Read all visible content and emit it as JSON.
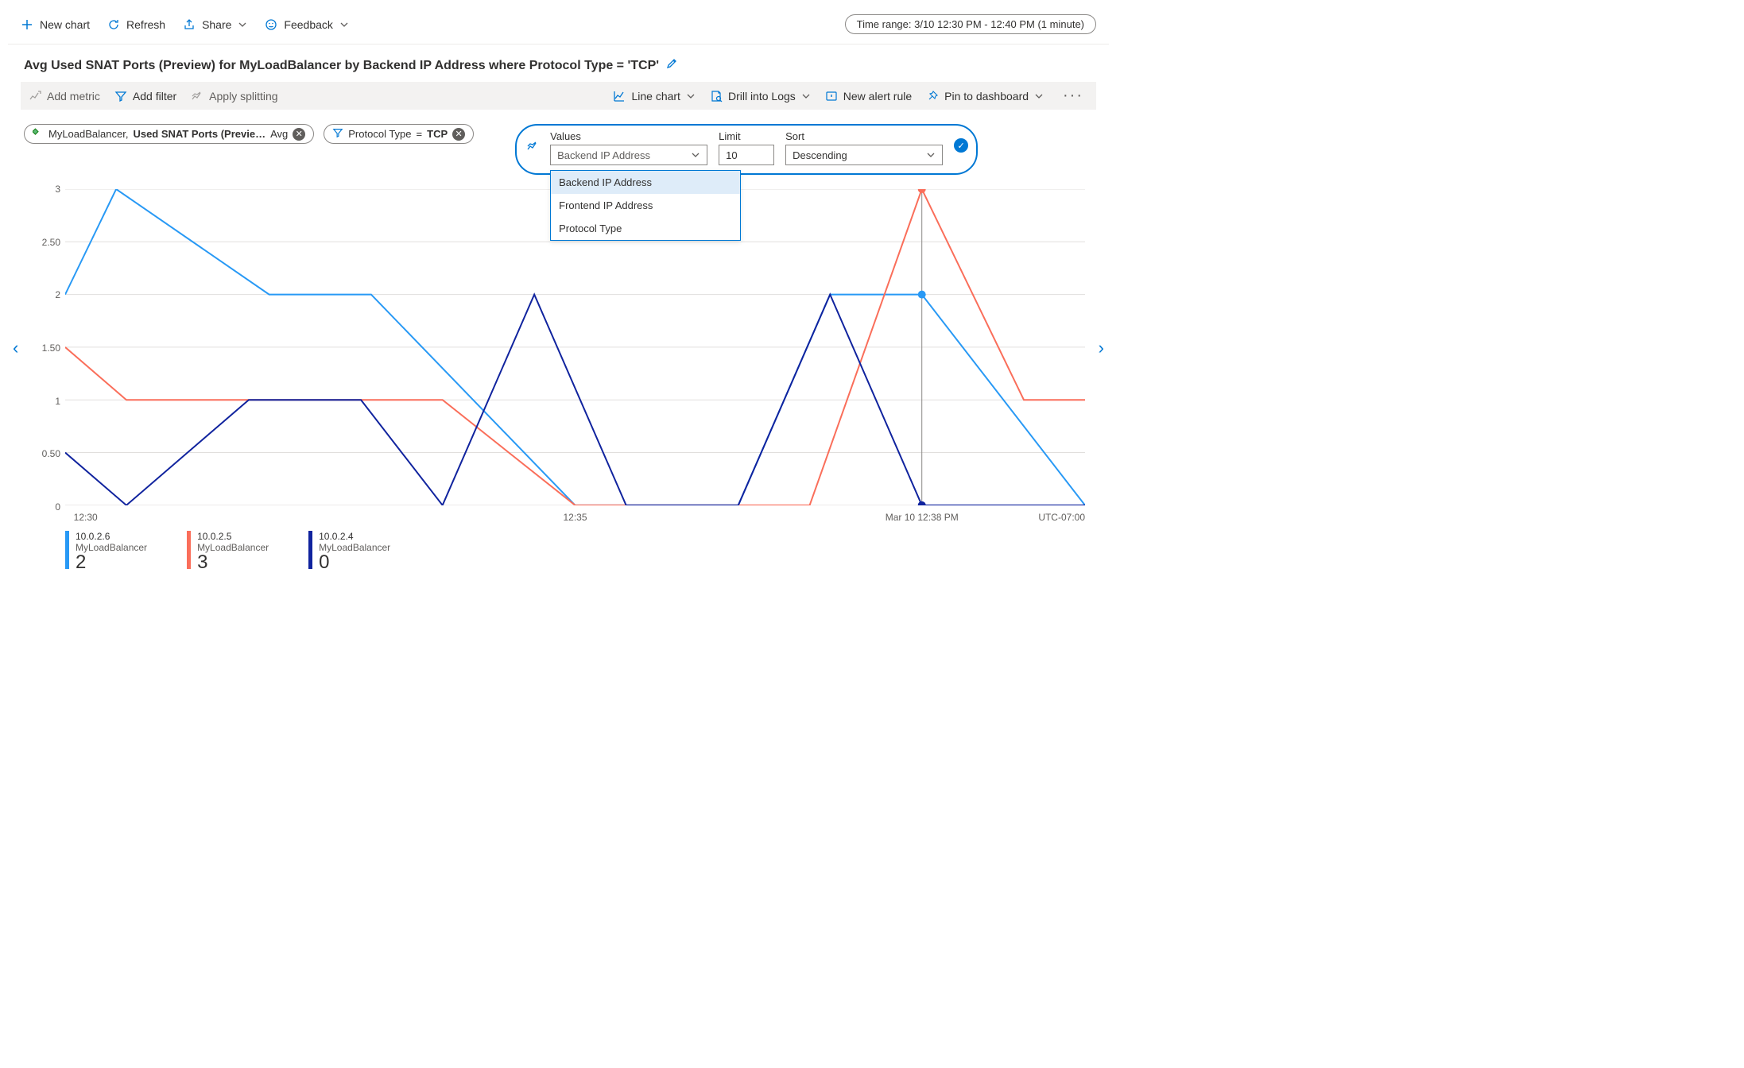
{
  "toolbar": {
    "new_chart": "New chart",
    "refresh": "Refresh",
    "share": "Share",
    "feedback": "Feedback",
    "time_range": "Time range: 3/10 12:30 PM - 12:40 PM (1 minute)"
  },
  "title": "Avg Used SNAT Ports (Preview) for MyLoadBalancer by Backend IP Address where Protocol Type = 'TCP'",
  "sec_toolbar": {
    "add_metric": "Add metric",
    "add_filter": "Add filter",
    "apply_splitting": "Apply splitting",
    "chart_type": "Line chart",
    "drill_logs": "Drill into Logs",
    "new_alert": "New alert rule",
    "pin": "Pin to dashboard"
  },
  "metric_pill": {
    "resource": "MyLoadBalancer,",
    "metric": "Used SNAT Ports (Previe…",
    "agg": "Avg"
  },
  "filter_pill": {
    "dimension": "Protocol Type",
    "op": "=",
    "value": "TCP"
  },
  "split": {
    "values_label": "Values",
    "values_selected": "Backend IP Address",
    "limit_label": "Limit",
    "limit_value": "10",
    "sort_label": "Sort",
    "sort_value": "Descending",
    "options": [
      "Backend IP Address",
      "Frontend IP Address",
      "Protocol Type"
    ],
    "selected_index": 0
  },
  "chart": {
    "ylim": [
      0,
      3
    ],
    "yticks": [
      0,
      0.5,
      1,
      1.5,
      2,
      2.5,
      3
    ],
    "ytick_labels": [
      "0",
      "0.50",
      "1",
      "1.50",
      "2",
      "2.50",
      "3"
    ],
    "x_domain": [
      0,
      10
    ],
    "x_ticks": [
      {
        "pos": 0.2,
        "label": "12:30"
      },
      {
        "pos": 5.0,
        "label": "12:35"
      }
    ],
    "hover": {
      "x": 8.4,
      "label": "Mar 10 12:38 PM"
    },
    "tz_label": "UTC-07:00",
    "colors": {
      "s1": "#2899f5",
      "s2": "#fa6e5a",
      "s3": "#10239e",
      "grid": "#e1dfdd",
      "hover": "#8a8886"
    },
    "series": [
      {
        "key": "s1",
        "points": [
          [
            0,
            2
          ],
          [
            0.5,
            3
          ],
          [
            2,
            2
          ],
          [
            3,
            2
          ],
          [
            5,
            0
          ],
          [
            6.6,
            0
          ],
          [
            7.5,
            2
          ],
          [
            8.4,
            2
          ],
          [
            10,
            0
          ]
        ]
      },
      {
        "key": "s2",
        "points": [
          [
            0,
            1.5
          ],
          [
            0.6,
            1
          ],
          [
            3.7,
            1
          ],
          [
            5,
            0
          ],
          [
            7.3,
            0
          ],
          [
            8.4,
            3
          ],
          [
            9.4,
            1
          ],
          [
            10,
            1
          ]
        ]
      },
      {
        "key": "s3",
        "points": [
          [
            0,
            0.5
          ],
          [
            0.6,
            0
          ],
          [
            1.8,
            1
          ],
          [
            2.9,
            1
          ],
          [
            3.7,
            0
          ],
          [
            4.6,
            2
          ],
          [
            5.5,
            0
          ],
          [
            6.6,
            0
          ],
          [
            7.5,
            2
          ],
          [
            8.4,
            0
          ],
          [
            10,
            0
          ]
        ]
      }
    ],
    "hover_points": [
      {
        "series": "s1",
        "y": 2
      },
      {
        "series": "s2",
        "y": 3
      },
      {
        "series": "s3",
        "y": 0
      }
    ]
  },
  "legend": [
    {
      "color": "#2899f5",
      "ip": "10.0.2.6",
      "resource": "MyLoadBalancer",
      "value": "2"
    },
    {
      "color": "#fa6e5a",
      "ip": "10.0.2.5",
      "resource": "MyLoadBalancer",
      "value": "3"
    },
    {
      "color": "#10239e",
      "ip": "10.0.2.4",
      "resource": "MyLoadBalancer",
      "value": "0"
    }
  ]
}
